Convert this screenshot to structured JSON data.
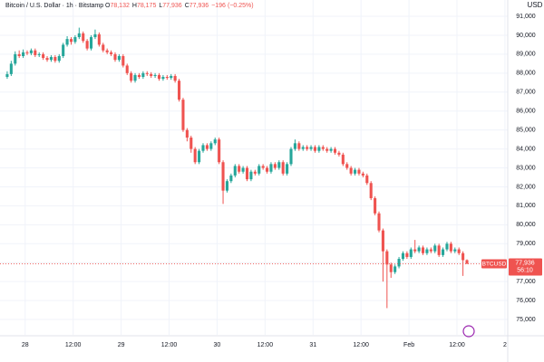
{
  "chart_data": {
    "type": "candlestick",
    "title": "Bitcoin / U.S. Dollar · 1h · Bitstamp",
    "currency": "USD",
    "ohlc_legend": {
      "letters": [
        "O",
        "H",
        "L",
        "C"
      ],
      "values": [
        {
          "value": 78132,
          "label": "78,132"
        },
        {
          "value": 78175,
          "label": "78,175"
        },
        {
          "value": 77936,
          "label": "77,936"
        },
        {
          "value": 77936,
          "label": "77,936"
        }
      ],
      "change": {
        "value": -196,
        "label": "−196"
      },
      "change_pct": {
        "value": -0.25,
        "label": "(−0.25%)"
      }
    },
    "open": [
      87800,
      87950,
      88500,
      89000,
      88900,
      89100,
      89050,
      89200,
      88950,
      89000,
      88800,
      88700,
      88850,
      88650,
      88900,
      89500,
      89800,
      89650,
      89900,
      90100,
      89700,
      89300,
      89900,
      90050,
      89500,
      89200,
      89100,
      89000,
      88700,
      88900,
      88400,
      88000,
      87600,
      87900,
      87800,
      88000,
      87950,
      87850,
      87900,
      87700,
      87800,
      87750,
      87850,
      87600,
      86600,
      85000,
      84600,
      84000,
      83300,
      83900,
      84200,
      84000,
      84300,
      84500,
      83300,
      81800,
      82300,
      82600,
      83100,
      82800,
      83000,
      82400,
      82800,
      82700,
      83100,
      83000,
      82800,
      83200,
      83000,
      83300,
      82700,
      83200,
      84000,
      84300,
      84000,
      84100,
      84000,
      84100,
      83900,
      84100,
      84000,
      83900,
      84000,
      83800,
      83700,
      83200,
      83000,
      82700,
      82900,
      82700,
      82600,
      82200,
      81400,
      80600,
      79700,
      78600,
      77900,
      77500,
      77800,
      78200,
      78500,
      78300,
      78700,
      78600,
      78800,
      78500,
      78700,
      78600,
      78900,
      78400,
      78700,
      79000,
      78600,
      78700,
      78500,
      78132
    ],
    "high": [
      88100,
      88650,
      89150,
      89200,
      89250,
      89200,
      89300,
      89300,
      89100,
      89100,
      88900,
      88950,
      88950,
      89000,
      89600,
      89950,
      89900,
      90000,
      90400,
      90200,
      89800,
      90000,
      90300,
      90150,
      89600,
      89300,
      89200,
      89100,
      89000,
      89000,
      88500,
      88100,
      88000,
      88000,
      88100,
      88100,
      88050,
      88000,
      88000,
      87900,
      87900,
      87950,
      87950,
      87700,
      86700,
      85100,
      84700,
      84100,
      84000,
      84300,
      84300,
      84400,
      84600,
      84600,
      83400,
      82400,
      82700,
      83200,
      83200,
      83100,
      83100,
      82900,
      82900,
      83200,
      83200,
      83100,
      83300,
      83300,
      83400,
      83400,
      83300,
      84100,
      84500,
      84400,
      84200,
      84200,
      84200,
      84200,
      84200,
      84200,
      84100,
      84100,
      84100,
      83900,
      83800,
      83300,
      83100,
      83000,
      83000,
      82800,
      82700,
      82300,
      81500,
      80700,
      79800,
      78700,
      78000,
      77900,
      78300,
      78600,
      78600,
      78800,
      79200,
      78900,
      78900,
      78800,
      78800,
      79000,
      79000,
      78800,
      79100,
      79100,
      78800,
      78800,
      78600,
      78175
    ],
    "low": [
      87700,
      87850,
      88400,
      88800,
      88800,
      88950,
      88950,
      88850,
      88850,
      88700,
      88600,
      88600,
      88550,
      88550,
      88800,
      89400,
      89500,
      89550,
      89800,
      89600,
      89200,
      89200,
      89800,
      89400,
      89100,
      89000,
      88900,
      88600,
      88600,
      88300,
      87900,
      87500,
      87500,
      87700,
      87700,
      87850,
      87750,
      87750,
      87600,
      87600,
      87650,
      87650,
      87500,
      86500,
      84900,
      84400,
      83800,
      83200,
      83200,
      83800,
      83900,
      83900,
      84200,
      83200,
      81100,
      81700,
      82200,
      82500,
      82700,
      82700,
      82300,
      82300,
      82600,
      82600,
      82900,
      82700,
      82700,
      82900,
      82900,
      82600,
      82600,
      83100,
      83900,
      83900,
      83900,
      83900,
      83900,
      83800,
      83800,
      83900,
      83800,
      83800,
      83700,
      83600,
      83100,
      82900,
      82600,
      82600,
      82600,
      82500,
      82100,
      81300,
      80500,
      79600,
      77000,
      75600,
      77200,
      77400,
      77700,
      78100,
      78200,
      78200,
      78500,
      78500,
      78400,
      78400,
      78500,
      78500,
      78300,
      78300,
      78600,
      78500,
      78500,
      78400,
      77300,
      77936
    ],
    "close": [
      87950,
      88500,
      89000,
      88900,
      89100,
      89050,
      89200,
      88950,
      89000,
      88800,
      88700,
      88850,
      88650,
      88900,
      89500,
      89800,
      89650,
      89900,
      90100,
      89700,
      89300,
      89900,
      90050,
      89500,
      89200,
      89100,
      89000,
      88700,
      88900,
      88400,
      88000,
      87600,
      87900,
      87800,
      88000,
      87950,
      87850,
      87900,
      87700,
      87800,
      87750,
      87850,
      87600,
      86600,
      85000,
      84600,
      84000,
      83300,
      83900,
      84200,
      84000,
      84300,
      84500,
      83300,
      81800,
      82300,
      82600,
      83100,
      82800,
      83000,
      82400,
      82800,
      82700,
      83100,
      83000,
      82800,
      83200,
      83000,
      83300,
      82700,
      83200,
      84000,
      84300,
      84000,
      84100,
      84000,
      84100,
      83900,
      84100,
      84000,
      83900,
      84000,
      83800,
      83700,
      83200,
      83000,
      82700,
      82900,
      82700,
      82600,
      82200,
      81400,
      80600,
      79700,
      78600,
      77900,
      77500,
      77800,
      78200,
      78500,
      78300,
      78700,
      78600,
      78800,
      78500,
      78700,
      78600,
      78900,
      78400,
      78700,
      79000,
      78600,
      78700,
      78500,
      78132,
      77936
    ],
    "colors": {
      "up": "#26a69a",
      "down": "#ef5350"
    },
    "xlim": [
      -1.8,
      125.2
    ],
    "xticks": [
      {
        "value": 4.5,
        "label": "28"
      },
      {
        "value": 16.5,
        "label": "12:00"
      },
      {
        "value": 28.5,
        "label": "29"
      },
      {
        "value": 40.5,
        "label": "12:00"
      },
      {
        "value": 52.5,
        "label": "30"
      },
      {
        "value": 64.5,
        "label": "12:00"
      },
      {
        "value": 76.5,
        "label": "31"
      },
      {
        "value": 88.5,
        "label": "12:00"
      },
      {
        "value": 100.5,
        "label": "Feb"
      },
      {
        "value": 112.5,
        "label": "12:00"
      },
      {
        "value": 124.5,
        "label": "2"
      }
    ],
    "ylim": [
      74190,
      91860
    ],
    "yticks": [
      {
        "value": 75000,
        "label": "75,000"
      },
      {
        "value": 76000,
        "label": "76,000"
      },
      {
        "value": 77000,
        "label": "77,000"
      },
      {
        "value": 78000,
        "label": "78,000"
      },
      {
        "value": 79000,
        "label": "79,000"
      },
      {
        "value": 80000,
        "label": "80,000"
      },
      {
        "value": 81000,
        "label": "81,000"
      },
      {
        "value": 82000,
        "label": "82,000"
      },
      {
        "value": 83000,
        "label": "83,000"
      },
      {
        "value": 84000,
        "label": "84,000"
      },
      {
        "value": 85000,
        "label": "85,000"
      },
      {
        "value": 86000,
        "label": "86,000"
      },
      {
        "value": 87000,
        "label": "87,000"
      },
      {
        "value": 88000,
        "label": "88,000"
      },
      {
        "value": 89000,
        "label": "89,000"
      },
      {
        "value": 90000,
        "label": "90,000"
      },
      {
        "value": 91000,
        "label": "91,000"
      }
    ],
    "grid": true,
    "last_price": {
      "symbol": "BTCUSD",
      "price": {
        "value": 77936,
        "label": "77,936"
      },
      "countdown": "56:10"
    }
  }
}
